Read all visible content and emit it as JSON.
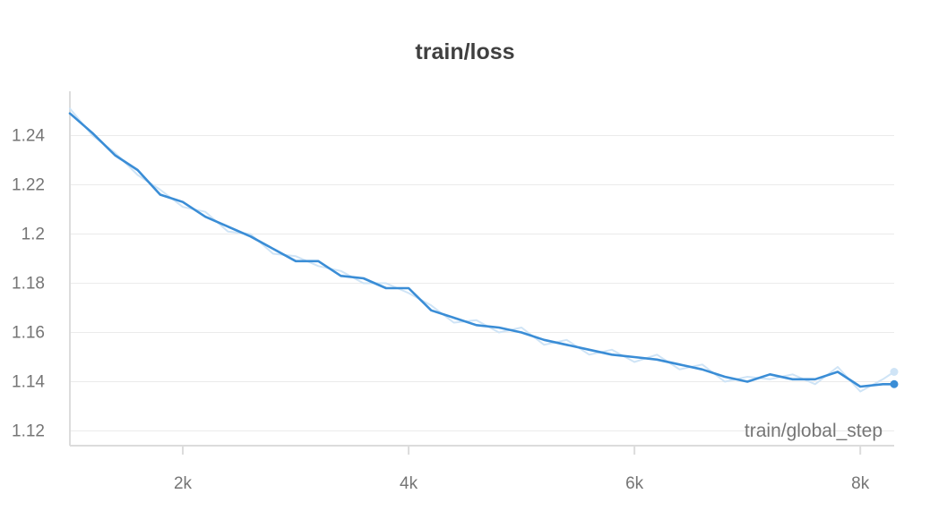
{
  "chart_data": {
    "type": "line",
    "title": "train/loss",
    "xlabel": "train/global_step",
    "ylabel": "",
    "xlim": [
      1000,
      8300
    ],
    "ylim": [
      1.114,
      1.258
    ],
    "x_ticks": [
      2000,
      4000,
      6000,
      8000
    ],
    "x_tick_labels": [
      "2k",
      "4k",
      "6k",
      "8k"
    ],
    "y_ticks": [
      1.12,
      1.14,
      1.16,
      1.18,
      1.2,
      1.22,
      1.24
    ],
    "y_tick_labels": [
      "1.12",
      "1.14",
      "1.16",
      "1.18",
      "1.2",
      "1.22",
      "1.24"
    ],
    "grid": true,
    "legend": "none",
    "colors": {
      "smoothed": "#3a8dd6",
      "raw": "#cfe4f6",
      "grid": "#ebebeb",
      "axis": "#dcdcdc"
    },
    "series": [
      {
        "style": "smoothed",
        "x": [
          1000,
          1200,
          1400,
          1600,
          1800,
          2000,
          2200,
          2400,
          2600,
          2800,
          3000,
          3200,
          3400,
          3600,
          3800,
          4000,
          4200,
          4400,
          4600,
          4800,
          5000,
          5200,
          5400,
          5600,
          5800,
          6000,
          6200,
          6400,
          6600,
          6800,
          7000,
          7200,
          7400,
          7600,
          7800,
          8000,
          8200,
          8300
        ],
        "y": [
          1.249,
          1.241,
          1.232,
          1.226,
          1.216,
          1.213,
          1.207,
          1.203,
          1.199,
          1.194,
          1.189,
          1.189,
          1.183,
          1.182,
          1.178,
          1.178,
          1.169,
          1.166,
          1.163,
          1.162,
          1.16,
          1.157,
          1.155,
          1.153,
          1.151,
          1.15,
          1.149,
          1.147,
          1.145,
          1.142,
          1.14,
          1.143,
          1.141,
          1.141,
          1.144,
          1.138,
          1.139,
          1.139
        ]
      },
      {
        "style": "raw",
        "x": [
          1000,
          1200,
          1400,
          1600,
          1800,
          2000,
          2200,
          2400,
          2600,
          2800,
          3000,
          3200,
          3400,
          3600,
          3800,
          4000,
          4200,
          4400,
          4600,
          4800,
          5000,
          5200,
          5400,
          5600,
          5800,
          6000,
          6200,
          6400,
          6600,
          6800,
          7000,
          7200,
          7400,
          7600,
          7800,
          8000,
          8200,
          8300
        ],
        "y": [
          1.251,
          1.24,
          1.233,
          1.224,
          1.218,
          1.211,
          1.209,
          1.201,
          1.2,
          1.192,
          1.191,
          1.187,
          1.185,
          1.18,
          1.18,
          1.176,
          1.171,
          1.164,
          1.165,
          1.16,
          1.162,
          1.155,
          1.157,
          1.151,
          1.153,
          1.148,
          1.151,
          1.145,
          1.147,
          1.14,
          1.142,
          1.141,
          1.143,
          1.139,
          1.146,
          1.136,
          1.141,
          1.144
        ]
      }
    ]
  }
}
